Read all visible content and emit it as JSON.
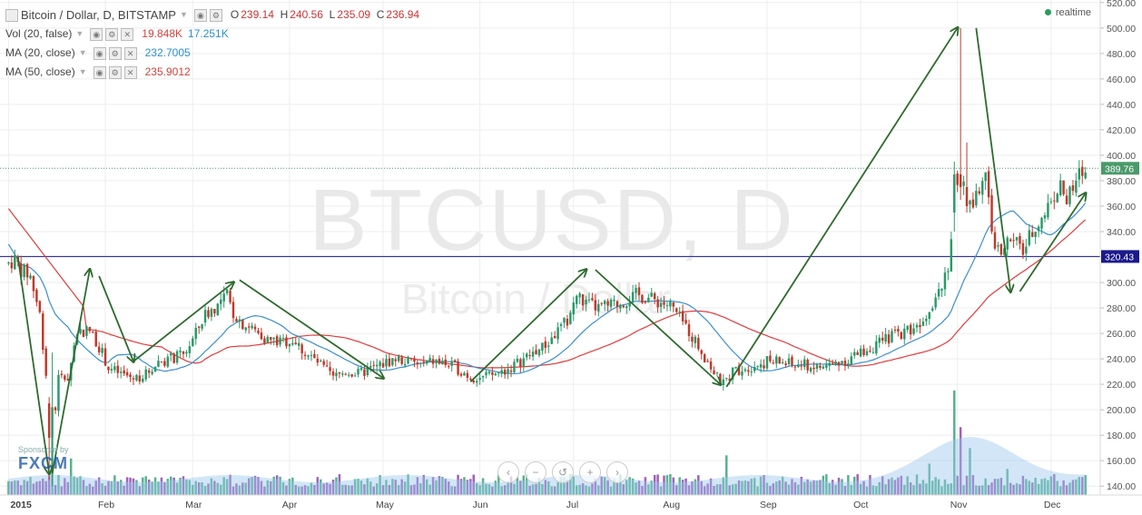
{
  "header": {
    "symbol": "Bitcoin / Dollar, D, BITSTAMP",
    "o_label": "O",
    "o": "239.14",
    "h_label": "H",
    "h": "240.56",
    "l_label": "L",
    "l": "235.09",
    "c_label": "C",
    "c": "236.94"
  },
  "indicators": [
    {
      "name": "Vol (20, false)",
      "v1": "19.848K",
      "v2": "17.251K",
      "c1": "#d0433f",
      "c2": "#2a8fd0"
    },
    {
      "name": "MA (20, close)",
      "v1": "232.7005",
      "c1": "#2a8fd0"
    },
    {
      "name": "MA (50, close)",
      "v1": "235.9012",
      "c1": "#d0433f"
    }
  ],
  "realtime_label": "realtime",
  "watermark": {
    "main": "BTCUSD, D",
    "sub": "Bitcoin / Dollar"
  },
  "sponsor": {
    "text": "Sponsored by",
    "brand": "FXCM"
  },
  "nav_buttons": [
    "‹",
    "−",
    "↺",
    "+",
    "›"
  ],
  "colors": {
    "up": "#2a9a6a",
    "down": "#c0392b",
    "ma20": "#3b8fd0",
    "ma50": "#e23b3b",
    "hline": "#1a1a8c",
    "arrow": "#2e6b2e",
    "last": "#4a9a6a"
  },
  "chart_data": {
    "type": "candlestick",
    "x_labels": [
      "2015",
      "Feb",
      "Mar",
      "Apr",
      "May",
      "Jun",
      "Jul",
      "Aug",
      "Sep",
      "Oct",
      "Nov",
      "Dec"
    ],
    "x_label_days": [
      0,
      31,
      59,
      90,
      120,
      151,
      181,
      212,
      243,
      273,
      304,
      334
    ],
    "y_ticks": [
      140,
      160,
      180,
      200,
      220,
      240,
      260,
      280,
      300,
      320,
      340,
      360,
      380,
      400,
      420,
      440,
      460,
      480,
      500,
      520
    ],
    "ylim": [
      133,
      522
    ],
    "xlim_days": [
      -1,
      348
    ],
    "horizontal_line": {
      "value": 320.43,
      "label": "320.43"
    },
    "last_price": {
      "value": 389.76,
      "label": "389.76"
    },
    "price_path": [
      [
        0,
        315
      ],
      [
        2,
        318
      ],
      [
        4,
        310
      ],
      [
        7,
        305
      ],
      [
        10,
        275
      ],
      [
        13,
        205
      ],
      [
        14,
        178
      ],
      [
        16,
        225
      ],
      [
        19,
        225
      ],
      [
        22,
        262
      ],
      [
        26,
        262
      ],
      [
        29,
        250
      ],
      [
        32,
        233
      ],
      [
        36,
        228
      ],
      [
        40,
        225
      ],
      [
        44,
        228
      ],
      [
        48,
        238
      ],
      [
        52,
        240
      ],
      [
        56,
        243
      ],
      [
        59,
        255
      ],
      [
        63,
        275
      ],
      [
        67,
        282
      ],
      [
        70,
        290
      ],
      [
        72,
        276
      ],
      [
        75,
        268
      ],
      [
        79,
        262
      ],
      [
        83,
        255
      ],
      [
        87,
        253
      ],
      [
        91,
        255
      ],
      [
        95,
        245
      ],
      [
        100,
        235
      ],
      [
        104,
        225
      ],
      [
        108,
        230
      ],
      [
        112,
        228
      ],
      [
        116,
        232
      ],
      [
        120,
        236
      ],
      [
        124,
        240
      ],
      [
        128,
        238
      ],
      [
        132,
        235
      ],
      [
        136,
        238
      ],
      [
        140,
        236
      ],
      [
        144,
        232
      ],
      [
        148,
        226
      ],
      [
        152,
        225
      ],
      [
        156,
        228
      ],
      [
        160,
        232
      ],
      [
        164,
        238
      ],
      [
        168,
        245
      ],
      [
        172,
        250
      ],
      [
        176,
        262
      ],
      [
        179,
        270
      ],
      [
        182,
        290
      ],
      [
        185,
        283
      ],
      [
        189,
        280
      ],
      [
        193,
        282
      ],
      [
        197,
        285
      ],
      [
        201,
        290
      ],
      [
        205,
        288
      ],
      [
        208,
        285
      ],
      [
        212,
        282
      ],
      [
        215,
        272
      ],
      [
        218,
        262
      ],
      [
        221,
        250
      ],
      [
        224,
        238
      ],
      [
        227,
        225
      ],
      [
        229,
        220
      ],
      [
        232,
        230
      ],
      [
        235,
        233
      ],
      [
        239,
        235
      ],
      [
        243,
        238
      ],
      [
        247,
        238
      ],
      [
        251,
        235
      ],
      [
        255,
        235
      ],
      [
        259,
        233
      ],
      [
        263,
        235
      ],
      [
        267,
        238
      ],
      [
        271,
        242
      ],
      [
        275,
        248
      ],
      [
        279,
        252
      ],
      [
        283,
        258
      ],
      [
        287,
        262
      ],
      [
        291,
        266
      ],
      [
        295,
        280
      ],
      [
        299,
        300
      ],
      [
        301,
        315
      ],
      [
        303,
        355
      ],
      [
        305,
        385
      ],
      [
        307,
        375
      ],
      [
        309,
        360
      ],
      [
        311,
        375
      ],
      [
        313,
        380
      ],
      [
        315,
        340
      ],
      [
        317,
        325
      ],
      [
        319,
        330
      ],
      [
        321,
        333
      ],
      [
        323,
        330
      ],
      [
        325,
        325
      ],
      [
        327,
        335
      ],
      [
        329,
        345
      ],
      [
        331,
        350
      ],
      [
        333,
        360
      ],
      [
        335,
        370
      ],
      [
        337,
        375
      ],
      [
        339,
        365
      ],
      [
        341,
        372
      ],
      [
        343,
        385
      ],
      [
        345,
        388
      ]
    ],
    "big_days": [
      [
        14,
        178,
        245,
        140,
        202
      ],
      [
        13,
        205,
        210,
        145,
        178
      ],
      [
        303,
        355,
        395,
        340,
        385
      ],
      [
        305,
        385,
        500,
        365,
        375
      ],
      [
        307,
        375,
        410,
        355,
        360
      ]
    ],
    "volume_max_note": "volume histogram at chart bottom, relative heights",
    "volume_spikes": [
      [
        14,
        0.55
      ],
      [
        20,
        0.35
      ],
      [
        56,
        0.18
      ],
      [
        100,
        0.15
      ],
      [
        180,
        0.2
      ],
      [
        212,
        0.2
      ],
      [
        230,
        0.38
      ],
      [
        295,
        0.3
      ],
      [
        303,
        1.0
      ],
      [
        305,
        0.65
      ],
      [
        308,
        0.45
      ],
      [
        320,
        0.25
      ],
      [
        335,
        0.2
      ]
    ],
    "arrows": [
      [
        [
          3,
          320
        ],
        [
          13,
          150
        ]
      ],
      [
        [
          14,
          150
        ],
        [
          26,
          310
        ]
      ],
      [
        [
          29,
          305
        ],
        [
          40,
          238
        ]
      ],
      [
        [
          40,
          238
        ],
        [
          72,
          300
        ]
      ],
      [
        [
          74,
          302
        ],
        [
          120,
          225
        ]
      ],
      [
        [
          148,
          222
        ],
        [
          185,
          310
        ]
      ],
      [
        [
          188,
          310
        ],
        [
          228,
          220
        ]
      ],
      [
        [
          230,
          218
        ],
        [
          304,
          500
        ]
      ],
      [
        [
          310,
          500
        ],
        [
          321,
          293
        ]
      ],
      [
        [
          324,
          293
        ],
        [
          345,
          370
        ]
      ]
    ]
  }
}
